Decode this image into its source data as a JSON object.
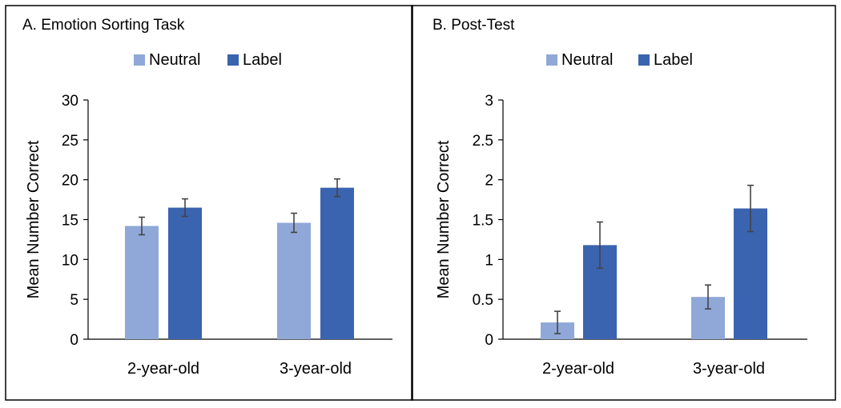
{
  "chart_data": [
    {
      "type": "bar",
      "title": "A.   Emotion Sorting Task",
      "categories": [
        "2-year-old",
        "3-year-old"
      ],
      "series": [
        {
          "name": "Neutral",
          "values": [
            14.2,
            14.6
          ],
          "errors": [
            1.1,
            1.2
          ],
          "color": "#8FA8D8"
        },
        {
          "name": "Label",
          "values": [
            16.5,
            19.0
          ],
          "errors": [
            1.1,
            1.1
          ],
          "color": "#3A63B0"
        }
      ],
      "ylabel": "Mean Number Correct",
      "ylim": [
        0,
        30
      ],
      "yticks": [
        0,
        5,
        10,
        15,
        20,
        25,
        30
      ],
      "ytick_labels": [
        "0",
        "5",
        "10",
        "15",
        "20",
        "25",
        "30"
      ],
      "legend": "top-center",
      "grid": false
    },
    {
      "type": "bar",
      "title": "B.   Post-Test",
      "categories": [
        "2-year-old",
        "3-year-old"
      ],
      "series": [
        {
          "name": "Neutral",
          "values": [
            0.21,
            0.53
          ],
          "errors": [
            0.14,
            0.15
          ],
          "color": "#8FA8D8"
        },
        {
          "name": "Label",
          "values": [
            1.18,
            1.64
          ],
          "errors": [
            0.29,
            0.29
          ],
          "color": "#3A63B0"
        }
      ],
      "ylabel": "Mean Number Correct",
      "ylim": [
        0,
        3
      ],
      "yticks": [
        0,
        0.5,
        1,
        1.5,
        2,
        2.5,
        3
      ],
      "ytick_labels": [
        "0",
        "0.5",
        "1",
        "1.5",
        "2",
        "2.5",
        "3"
      ],
      "legend": "top-center",
      "grid": false
    }
  ]
}
